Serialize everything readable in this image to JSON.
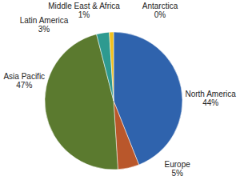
{
  "chart_data": {
    "type": "pie",
    "categories": [
      "North America",
      "Europe",
      "Asia Pacific",
      "Latin America",
      "Middle East & Africa",
      "Antarctica"
    ],
    "values": [
      44,
      5,
      47,
      3,
      1,
      0
    ],
    "value_labels": [
      "44%",
      "5%",
      "47%",
      "3%",
      "1%",
      "0%"
    ],
    "colors": [
      "#2f63ad",
      "#b9572b",
      "#5b7a2f",
      "#2e9a90",
      "#f2c01c",
      "#8c8c8c"
    ]
  }
}
